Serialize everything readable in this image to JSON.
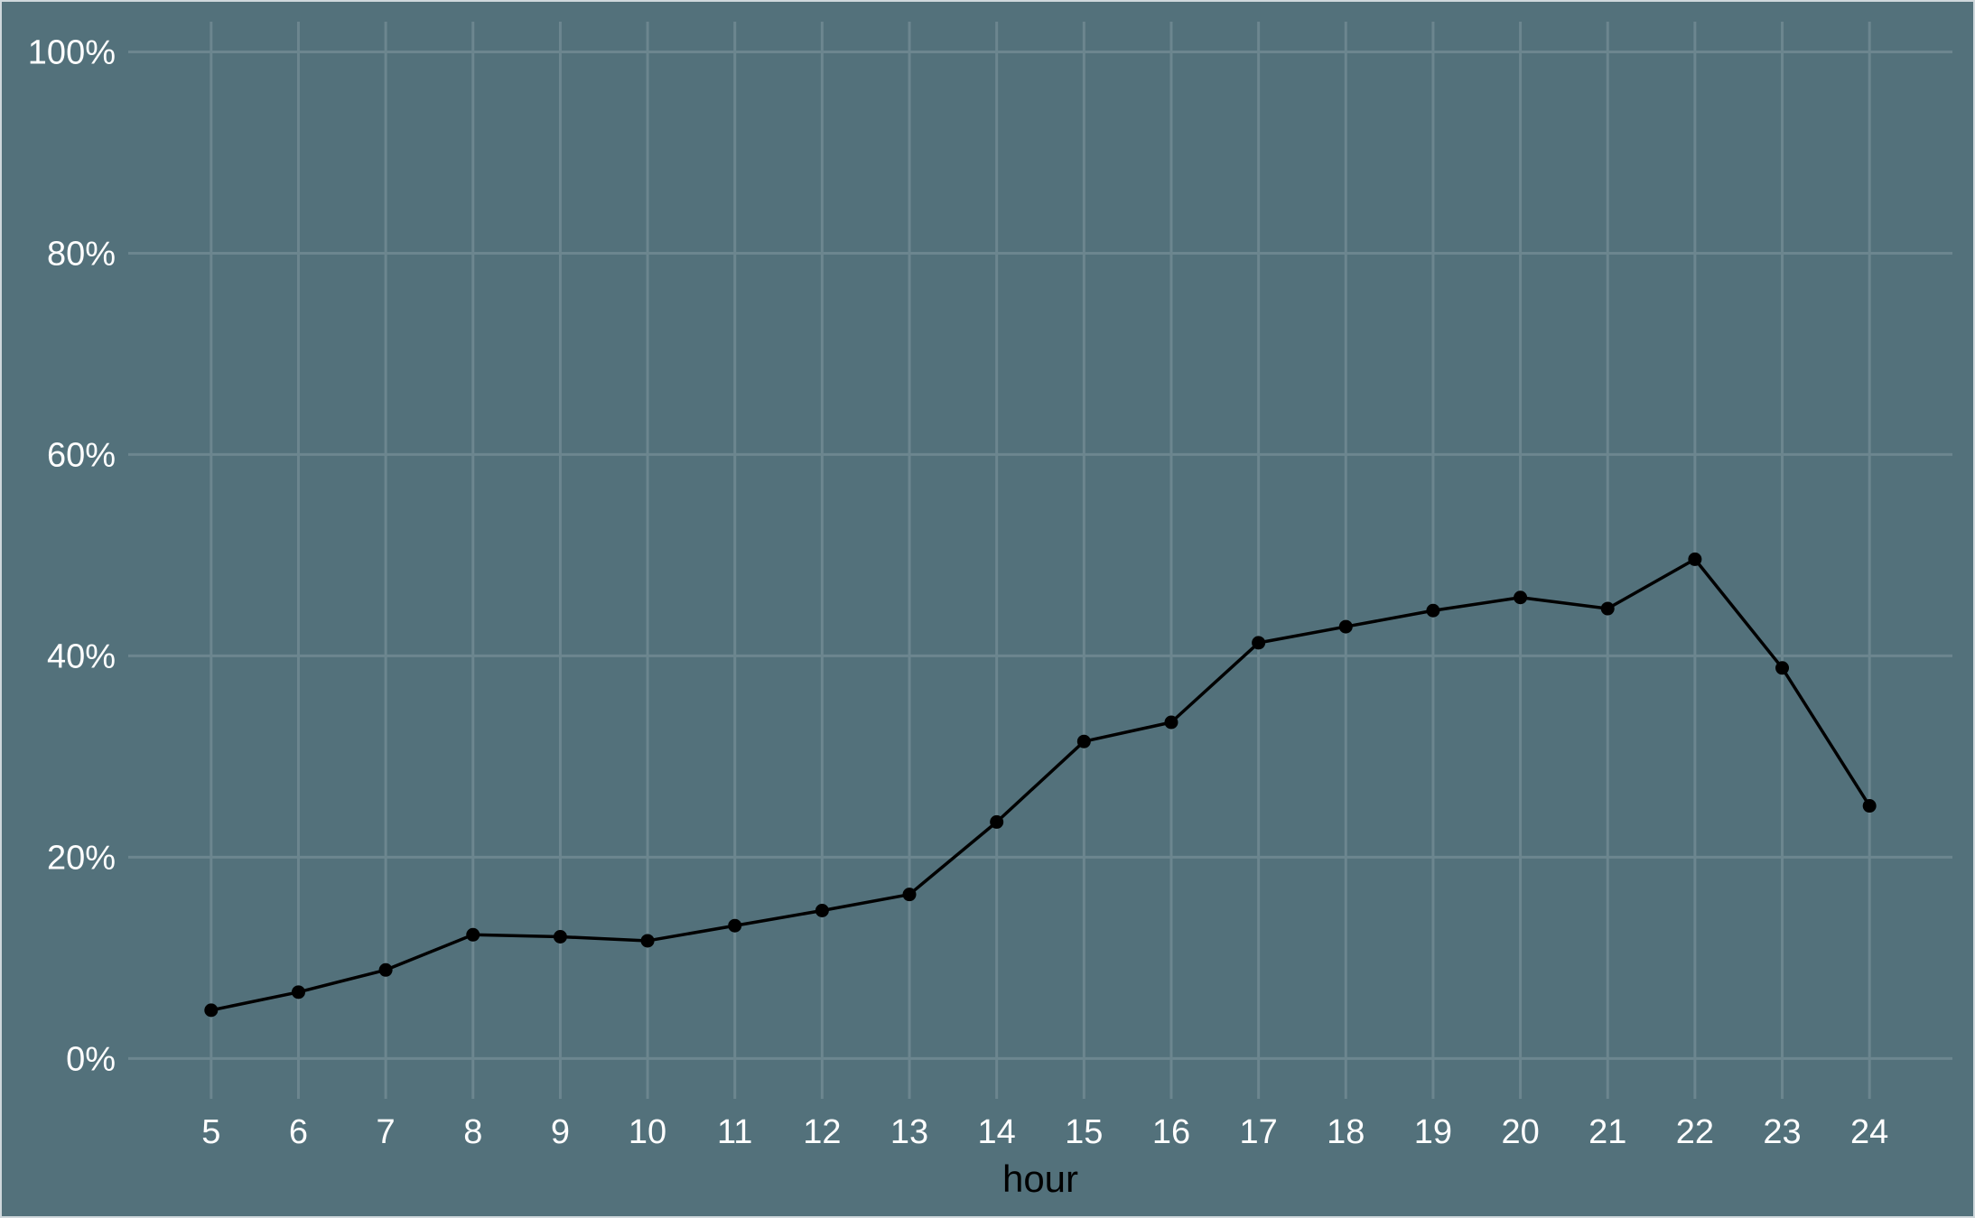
{
  "chart_data": {
    "type": "line",
    "title": "",
    "xlabel": "hour",
    "ylabel": "",
    "x": [
      5,
      6,
      7,
      8,
      9,
      10,
      11,
      12,
      13,
      14,
      15,
      16,
      17,
      18,
      19,
      20,
      21,
      22,
      23,
      24
    ],
    "series": [
      {
        "values": [
          0.048,
          0.066,
          0.088,
          0.123,
          0.121,
          0.117,
          0.132,
          0.147,
          0.163,
          0.235,
          0.315,
          0.334,
          0.413,
          0.429,
          0.445,
          0.458,
          0.447,
          0.496,
          0.388,
          0.251
        ]
      }
    ],
    "xlim": [
      4.05,
      24.95
    ],
    "ylim": [
      -0.04,
      1.03
    ],
    "y_ticks": [
      0,
      0.2,
      0.4,
      0.6,
      0.8,
      1.0
    ],
    "y_tick_labels": [
      "0%",
      "20%",
      "40%",
      "60%",
      "80%",
      "100%"
    ],
    "x_tick_labels": [
      "5",
      "6",
      "7",
      "8",
      "9",
      "10",
      "11",
      "12",
      "13",
      "14",
      "15",
      "16",
      "17",
      "18",
      "19",
      "20",
      "21",
      "22",
      "23",
      "24"
    ],
    "y_format": "percent",
    "grid": true,
    "legend": "none",
    "colors": {
      "panel_background": "#53717b",
      "grid": "#6c868f",
      "line": "#000000",
      "tick_text": "#ffffff",
      "axis_title_text": "#000000"
    }
  }
}
